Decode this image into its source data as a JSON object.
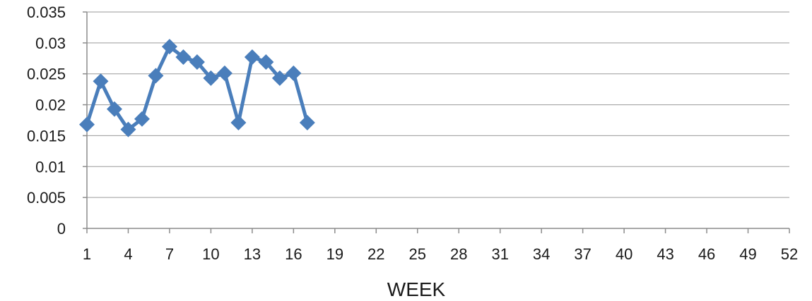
{
  "chart_data": {
    "type": "line",
    "title": "",
    "xlabel": "WEEK",
    "ylabel": "",
    "xlim": [
      1,
      52
    ],
    "ylim": [
      0,
      0.035
    ],
    "x_ticks": [
      1,
      4,
      7,
      10,
      13,
      16,
      19,
      22,
      25,
      28,
      31,
      34,
      37,
      40,
      43,
      46,
      49,
      52
    ],
    "x_tick_labels": [
      "1",
      "4",
      "7",
      "10",
      "13",
      "16",
      "19",
      "22",
      "25",
      "28",
      "31",
      "34",
      "37",
      "40",
      "43",
      "46",
      "49",
      "52"
    ],
    "y_ticks": [
      0,
      0.005,
      0.01,
      0.015,
      0.02,
      0.025,
      0.03,
      0.035
    ],
    "y_tick_labels": [
      "0",
      "0.005",
      "0.01",
      "0.015",
      "0.02",
      "0.025",
      "0.03",
      "0.035"
    ],
    "grid": true,
    "legend": "none",
    "series": [
      {
        "color": "#4a7ebb",
        "marker": "diamond",
        "x": [
          1,
          2,
          3,
          4,
          5,
          6,
          7,
          8,
          9,
          10,
          11,
          12,
          13,
          14,
          15,
          16,
          17
        ],
        "values": [
          0.0168,
          0.0238,
          0.0193,
          0.016,
          0.0177,
          0.0247,
          0.0294,
          0.0277,
          0.0269,
          0.0243,
          0.0251,
          0.0171,
          0.0277,
          0.0269,
          0.0243,
          0.0251,
          0.0171
        ]
      }
    ]
  }
}
